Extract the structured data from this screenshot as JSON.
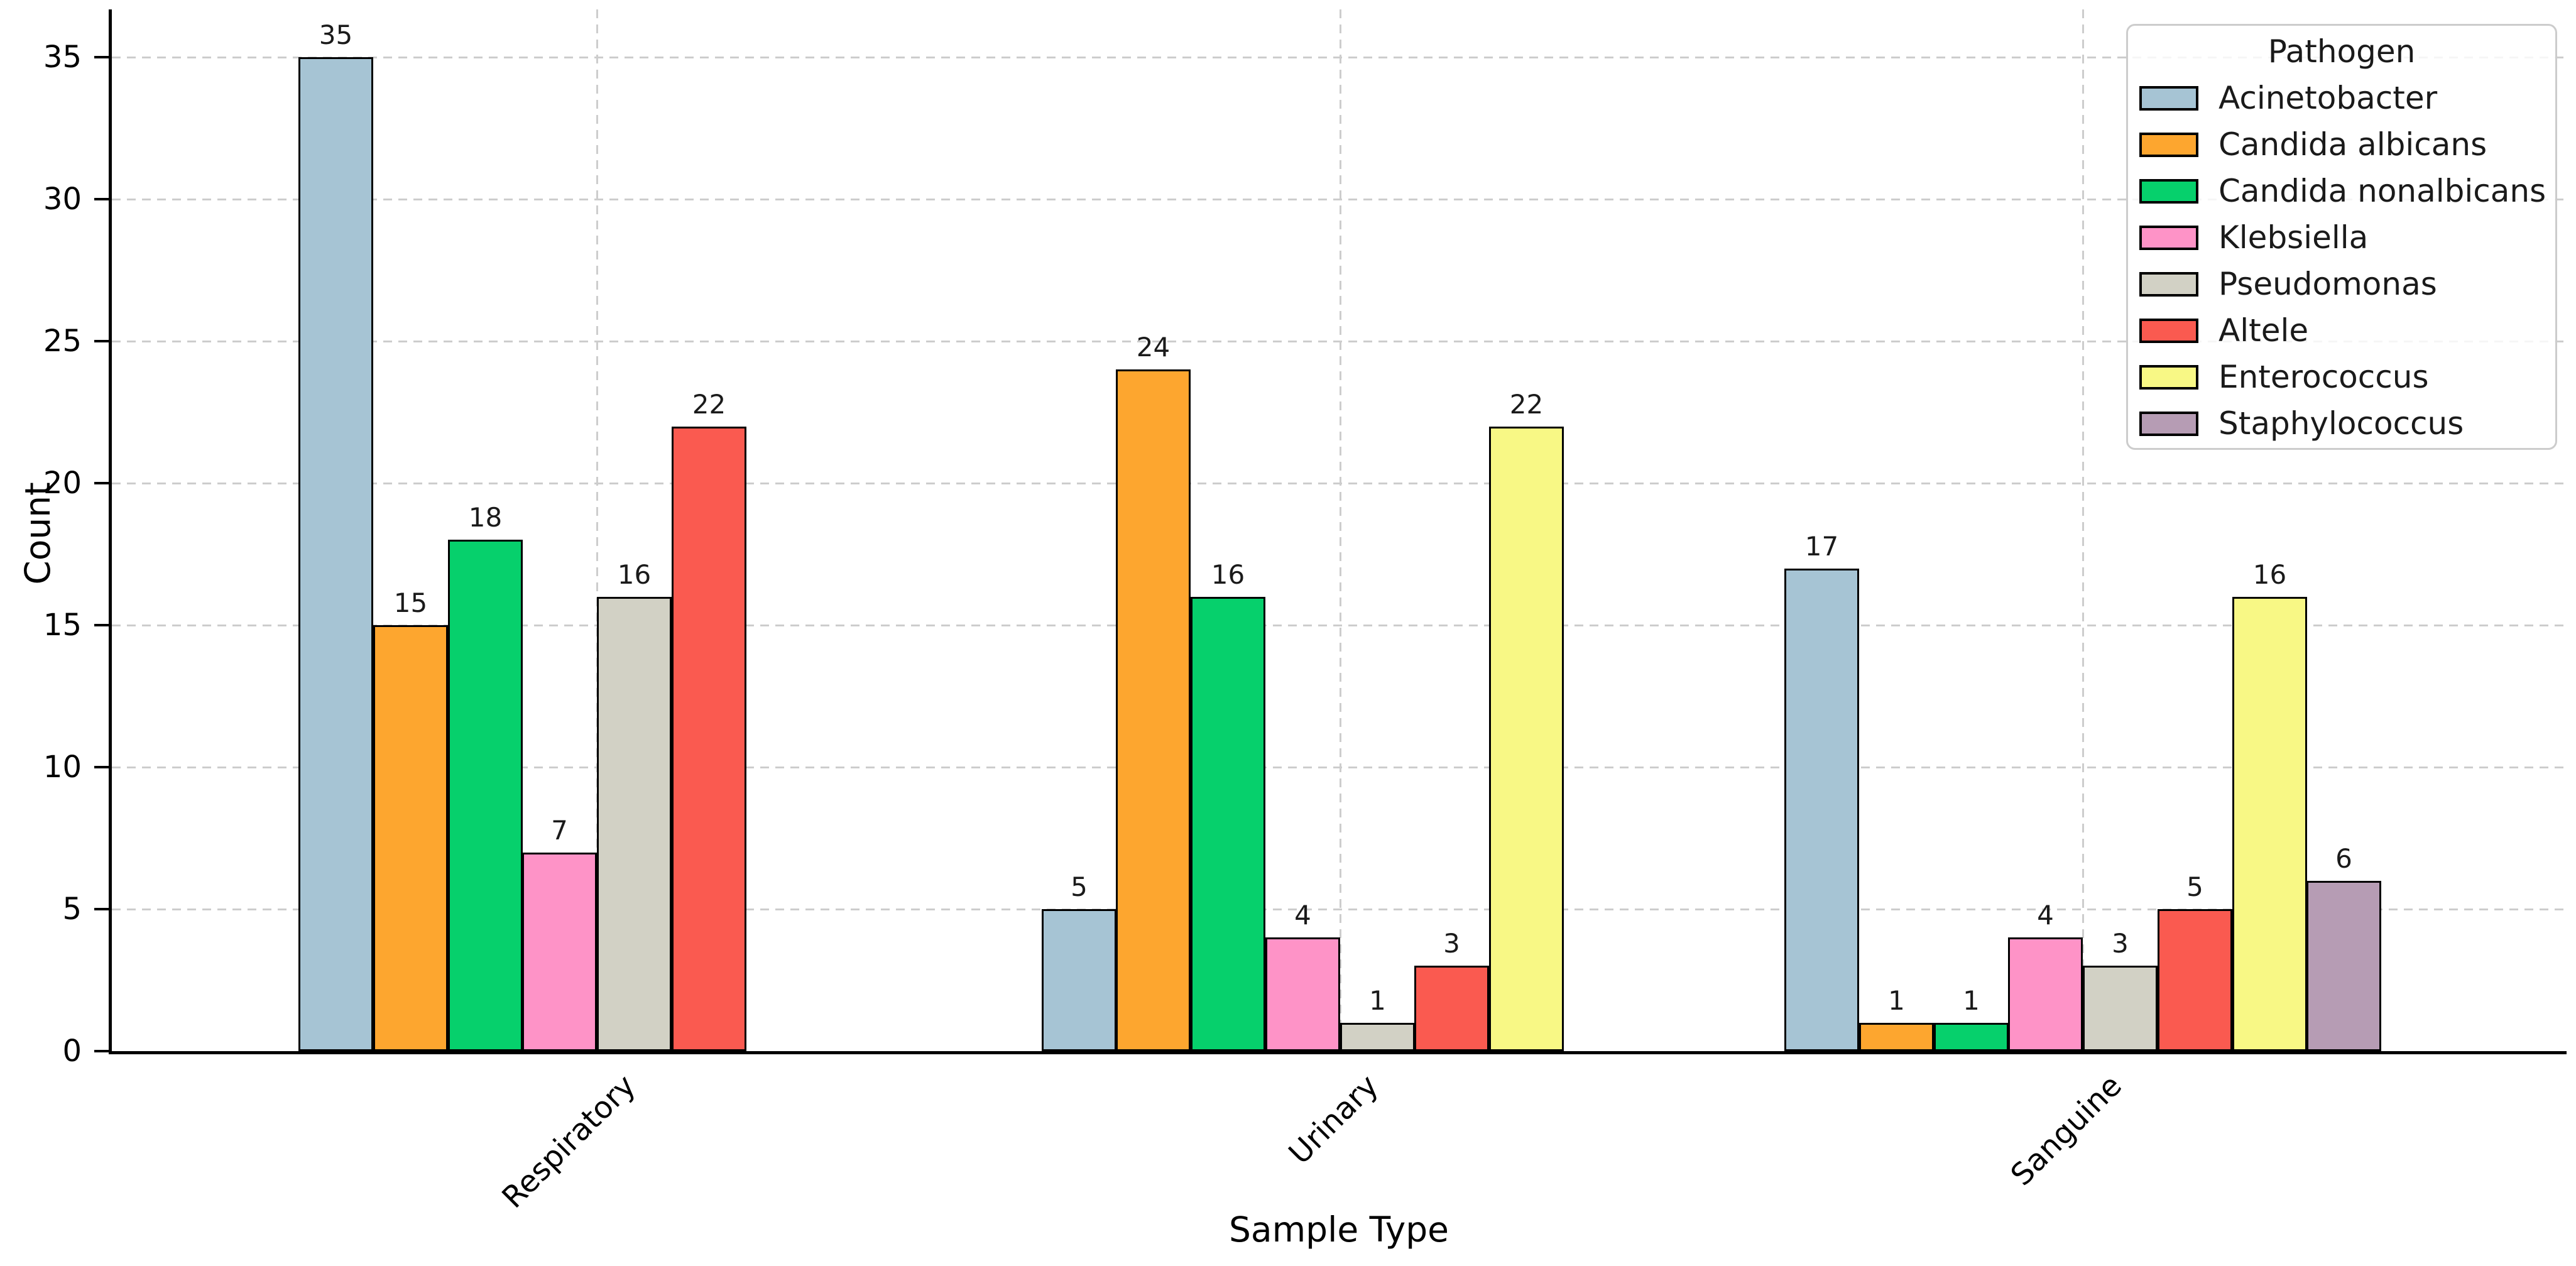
{
  "chart_data": {
    "type": "bar",
    "title": "",
    "xlabel": "Sample Type",
    "ylabel": "Count",
    "legend_title": "Pathogen",
    "legend_position": "upper right",
    "grid": true,
    "categories": [
      "Respiratory",
      "Urinary",
      "Sanguine"
    ],
    "series": [
      {
        "name": "Acinetobacter",
        "color": "#A6C4D4",
        "values": [
          35,
          5,
          17
        ]
      },
      {
        "name": "Candida albicans",
        "color": "#FDA62F",
        "values": [
          15,
          24,
          1
        ]
      },
      {
        "name": "Candida nonalbicans",
        "color": "#06D06C",
        "values": [
          18,
          16,
          1
        ]
      },
      {
        "name": "Klebsiella",
        "color": "#FE93C7",
        "values": [
          7,
          4,
          4
        ]
      },
      {
        "name": "Pseudomonas",
        "color": "#D2D1C5",
        "values": [
          16,
          1,
          3
        ]
      },
      {
        "name": "Altele",
        "color": "#FA5A50",
        "values": [
          22,
          3,
          5
        ]
      },
      {
        "name": "Enterococcus",
        "color": "#F8F885",
        "values": [
          0,
          22,
          16
        ]
      },
      {
        "name": "Staphylococcus",
        "color": "#B69CB4",
        "values": [
          0,
          0,
          6
        ]
      }
    ],
    "yticks": [
      0,
      5,
      10,
      15,
      20,
      25,
      30,
      35
    ],
    "ylim": [
      0,
      36.7
    ],
    "bar_edge_color": "#000000",
    "grid_color": "#cdcdcd",
    "background_color": "#ffffff"
  }
}
